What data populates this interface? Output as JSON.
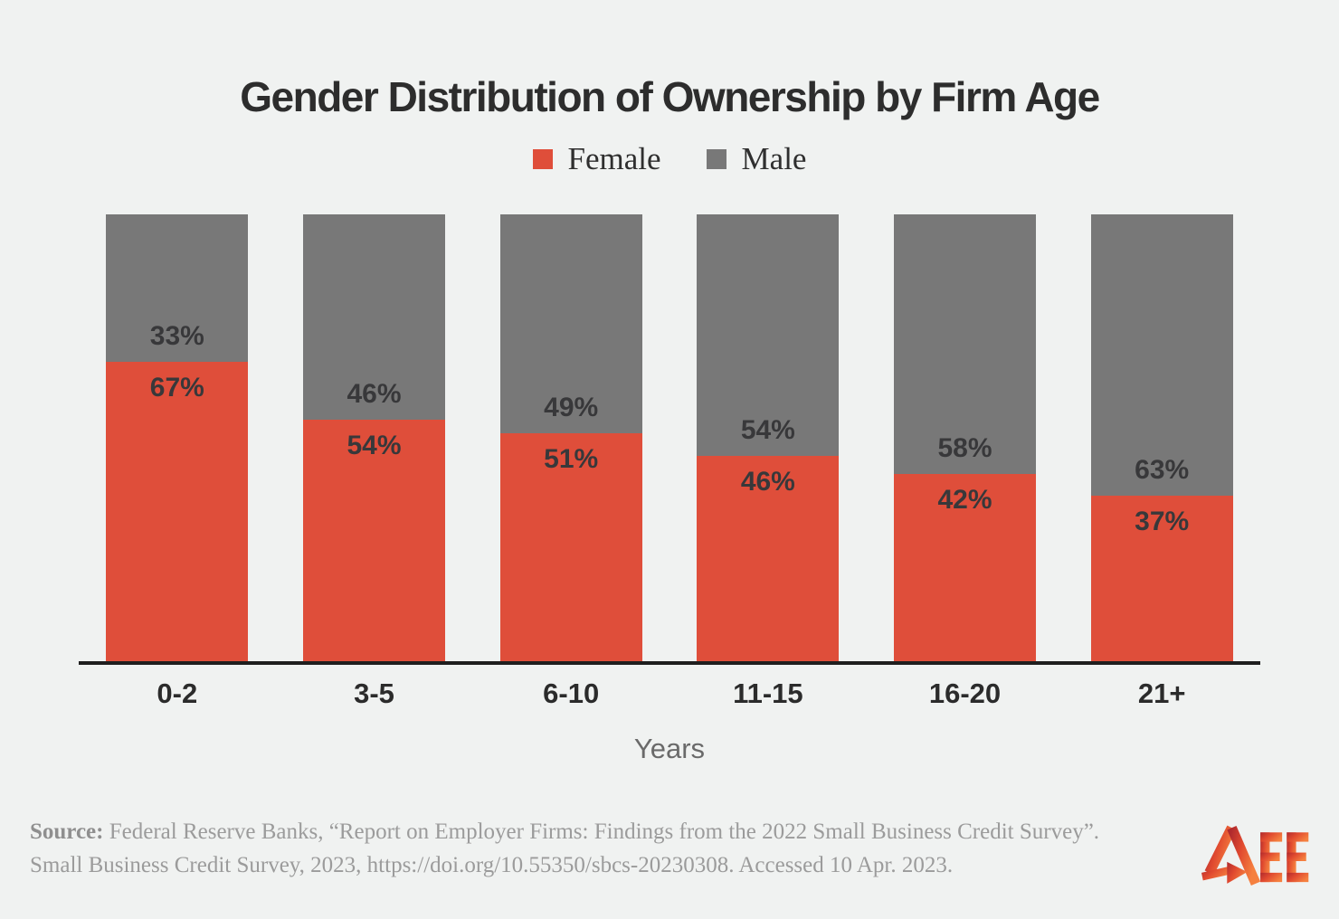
{
  "title": "Gender Distribution of Ownership by Firm Age",
  "legend": {
    "items": [
      {
        "label": "Female",
        "color": "#df4e3a"
      },
      {
        "label": "Male",
        "color": "#787878"
      }
    ]
  },
  "chart_data": {
    "type": "bar",
    "stacked": true,
    "percent_stacked": true,
    "unit": "%",
    "title": "Gender Distribution of Ownership by Firm Age",
    "categories": [
      "0-2",
      "3-5",
      "6-10",
      "11-15",
      "16-20",
      "21+"
    ],
    "series": [
      {
        "name": "Female",
        "color": "#df4e3a",
        "values": [
          67,
          54,
          51,
          46,
          42,
          37
        ]
      },
      {
        "name": "Male",
        "color": "#787878",
        "values": [
          33,
          46,
          49,
          54,
          58,
          63
        ]
      }
    ],
    "xlabel": "Years",
    "ylabel": "",
    "ylim": [
      0,
      100
    ],
    "grid": false,
    "legend_position": "top",
    "bar_labels": [
      "67%",
      "54%",
      "51%",
      "46%",
      "42%",
      "37%",
      "33%",
      "46%",
      "49%",
      "54%",
      "58%",
      "63%"
    ]
  },
  "xlabel": "Years",
  "source": {
    "prefix": "Source:",
    "text": " Federal Reserve Banks, “Report on Employer Firms: Findings from the 2022 Small Business Credit Survey”. Small Business Credit Survey, 2023, https://doi.org/10.55350/sbcs-20230308. Accessed 10 Apr. 2023."
  },
  "logo": {
    "text": "AEE"
  },
  "colors": {
    "background": "#f0f2f1",
    "female": "#df4e3a",
    "male": "#787878",
    "axis": "#1f1f1f",
    "title_text": "#2d2d2d",
    "bar_label_text": "#38383a",
    "tick_text": "#2b2b2b",
    "xlabel_text": "#6a6a6a",
    "source_text": "#9b9b9b",
    "logo_dark_red": "#b02a2e",
    "logo_orange": "#f5803f"
  }
}
